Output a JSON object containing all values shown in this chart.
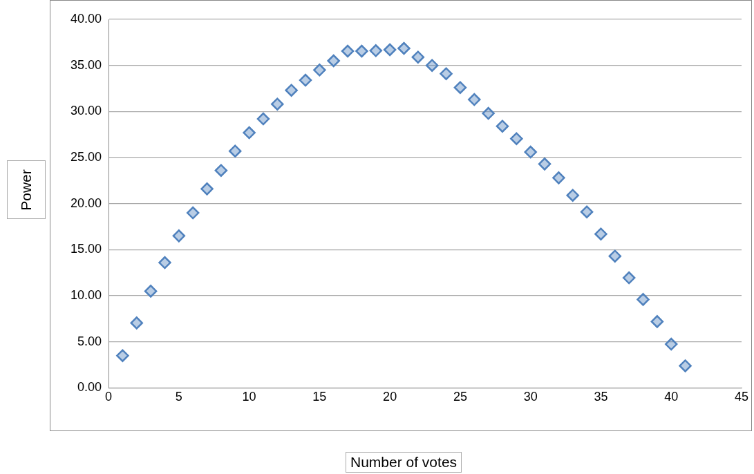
{
  "chart_data": {
    "type": "scatter",
    "xlabel": "Number of votes",
    "ylabel": "Power",
    "x": [
      1,
      2,
      3,
      4,
      5,
      6,
      7,
      8,
      9,
      10,
      11,
      12,
      13,
      14,
      15,
      16,
      17,
      18,
      19,
      20,
      21,
      22,
      23,
      24,
      25,
      26,
      27,
      28,
      29,
      30,
      31,
      32,
      33,
      34,
      35,
      36,
      37,
      38,
      39,
      40,
      41
    ],
    "series": [
      {
        "color": "#4f81bd",
        "values": [
          3.5,
          7.05,
          10.5,
          13.6,
          16.5,
          19.0,
          21.6,
          23.6,
          25.7,
          27.7,
          29.2,
          30.8,
          32.3,
          33.4,
          34.5,
          35.5,
          36.55,
          36.55,
          36.6,
          36.7,
          36.85,
          35.9,
          35.0,
          34.1,
          32.6,
          31.3,
          29.8,
          28.4,
          27.05,
          25.6,
          24.3,
          22.8,
          20.9,
          19.1,
          16.7,
          14.3,
          11.95,
          9.6,
          7.2,
          4.75,
          2.4
        ]
      }
    ],
    "xlim": [
      0,
      45
    ],
    "xticks": [
      0,
      5,
      10,
      15,
      20,
      25,
      30,
      35,
      40,
      45
    ],
    "ylim": [
      0,
      40
    ],
    "yticks": [
      {
        "value": 0,
        "label": "0.00"
      },
      {
        "value": 5,
        "label": "5.00"
      },
      {
        "value": 10,
        "label": "10.00"
      },
      {
        "value": 15,
        "label": "15.00"
      },
      {
        "value": 20,
        "label": "20.00"
      },
      {
        "value": 25,
        "label": "25.00"
      },
      {
        "value": 30,
        "label": "30.00"
      },
      {
        "value": 35,
        "label": "35.00"
      },
      {
        "value": 40,
        "label": "40.00"
      }
    ],
    "grid": "y",
    "legend": false,
    "marker": "diamond"
  }
}
